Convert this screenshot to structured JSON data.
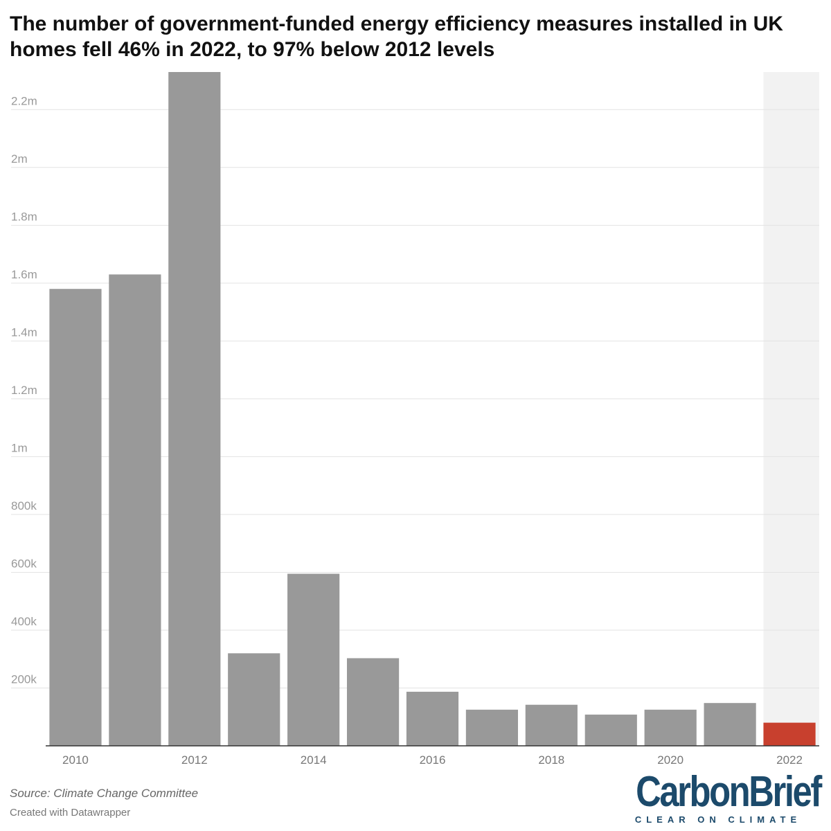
{
  "title": "The number of government-funded energy efficiency measures installed in UK homes fell 46% in 2022, to 97% below 2012 levels",
  "source": "Source: Climate Change Committee",
  "credit": "Created with Datawrapper",
  "logo": {
    "main": "CarbonBrief",
    "sub": "CLEAR ON CLIMATE"
  },
  "colors": {
    "bar": "#999999",
    "highlight": "#c8402e",
    "highlight_band": "#f2f2f2",
    "grid": "#e3e3e3",
    "logo": "#1c4a6b"
  },
  "chart_data": {
    "type": "bar",
    "title": "The number of government-funded energy efficiency measures installed in UK homes fell 46% in 2022, to 97% below 2012 levels",
    "xlabel": "",
    "ylabel": "",
    "categories": [
      "2010",
      "2011",
      "2012",
      "2013",
      "2014",
      "2015",
      "2016",
      "2017",
      "2018",
      "2019",
      "2020",
      "2021",
      "2022"
    ],
    "values": [
      1580000,
      1630000,
      2330000,
      320000,
      595000,
      303000,
      187000,
      125000,
      142000,
      108000,
      125000,
      148000,
      80000
    ],
    "highlight_category": "2022",
    "ylim": [
      0,
      2330000
    ],
    "yticks": [
      200000,
      400000,
      600000,
      800000,
      1000000,
      1200000,
      1400000,
      1600000,
      1800000,
      2000000,
      2200000
    ],
    "ytick_labels": [
      "200k",
      "400k",
      "600k",
      "800k",
      "1m",
      "1.2m",
      "1.4m",
      "1.6m",
      "1.8m",
      "2m",
      "2.2m"
    ],
    "xtick_labels": [
      "2010",
      "",
      "2012",
      "",
      "2014",
      "",
      "2016",
      "",
      "2018",
      "",
      "2020",
      "",
      "2022"
    ],
    "grid": true,
    "legend": "none"
  }
}
